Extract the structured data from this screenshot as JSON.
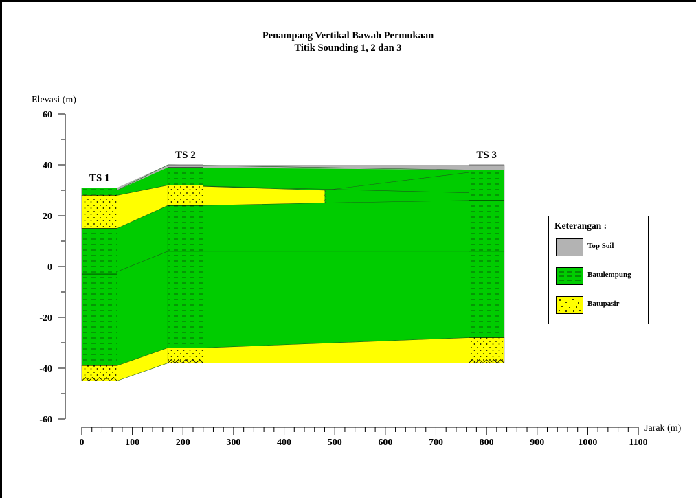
{
  "title": "Penampang Vertikal Bawah Permukaan",
  "subtitle": "Titik Sounding 1, 2 dan 3",
  "axes": {
    "y_label": "Elevasi (m)",
    "x_label": "Jarak (m)",
    "y_ticks": [
      "60",
      "40",
      "20",
      "0",
      "-20",
      "-40",
      "-60"
    ],
    "x_ticks": [
      "0",
      "100",
      "200",
      "300",
      "400",
      "500",
      "600",
      "700",
      "800",
      "900",
      "1000",
      "1100"
    ]
  },
  "soundings": [
    {
      "name": "TS 1",
      "x_from": 0,
      "x_to": 70
    },
    {
      "name": "TS 2",
      "x_from": 170,
      "x_to": 240
    },
    {
      "name": "TS 3",
      "x_from": 765,
      "x_to": 835
    }
  ],
  "legend": {
    "title": "Keterangan :",
    "items": [
      {
        "label": "Top Soil",
        "color": "#b3b3b3",
        "pattern": "plain"
      },
      {
        "label": "Batulempung",
        "color": "#00cc00",
        "pattern": "dashes"
      },
      {
        "label": "Batupasir",
        "color": "#ffff00",
        "pattern": "dots"
      }
    ]
  },
  "colors": {
    "top_soil": "#b3b3b3",
    "batulempung": "#00cc00",
    "batupasir": "#ffff00"
  }
}
